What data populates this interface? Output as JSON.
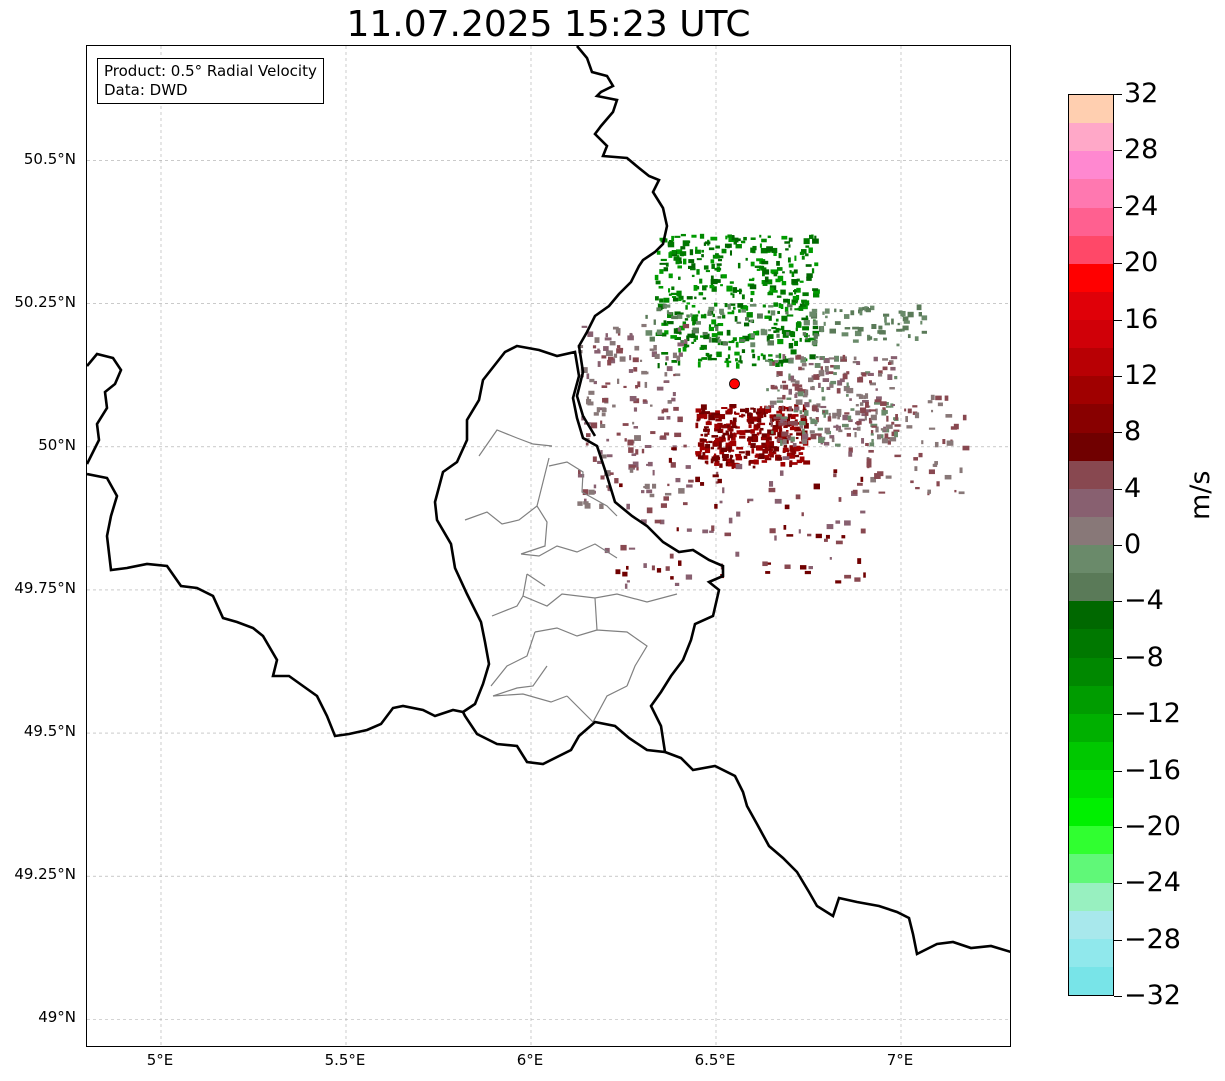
{
  "title": "11.07.2025 15:23 UTC",
  "info": {
    "product": "Product: 0.5° Radial Velocity",
    "data": "Data: DWD"
  },
  "map": {
    "lon_range": [
      4.8,
      7.3
    ],
    "lat_range": [
      48.95,
      50.7
    ],
    "gridlines": true,
    "lat_ticks": [
      {
        "value": 50.5,
        "label": "50.5°N"
      },
      {
        "value": 50.25,
        "label": "50.25°N"
      },
      {
        "value": 50.0,
        "label": "50°N"
      },
      {
        "value": 49.75,
        "label": "49.75°N"
      },
      {
        "value": 49.5,
        "label": "49.5°N"
      },
      {
        "value": 49.25,
        "label": "49.25°N"
      },
      {
        "value": 49.0,
        "label": "49°N"
      }
    ],
    "lon_ticks": [
      {
        "value": 5.0,
        "label": "5°E"
      },
      {
        "value": 5.5,
        "label": "5.5°E"
      },
      {
        "value": 6.0,
        "label": "6°E"
      },
      {
        "value": 6.5,
        "label": "6.5°E"
      },
      {
        "value": 7.0,
        "label": "7°E"
      }
    ],
    "radar_site": {
      "lon": 6.55,
      "lat": 50.11,
      "color": "#ff0000"
    }
  },
  "colorbar": {
    "unit": "m/s",
    "range": [
      -32,
      32
    ],
    "tick_labels": [
      "32",
      "28",
      "24",
      "20",
      "16",
      "12",
      "8",
      "4",
      "0",
      "−4",
      "−8",
      "−12",
      "−16",
      "−20",
      "−24",
      "−28",
      "−32"
    ],
    "colors_top_to_bottom": [
      "#ffcfb0",
      "#ffa8c8",
      "#ff88d0",
      "#ff78b0",
      "#ff6090",
      "#ff4868",
      "#ff0000",
      "#e00008",
      "#d00008",
      "#b80004",
      "#a00000",
      "#880000",
      "#700000",
      "#884850",
      "#886070",
      "#887878",
      "#6a8a6a",
      "#5a7a58",
      "#006800",
      "#007800",
      "#008800",
      "#009c00",
      "#00b000",
      "#00c800",
      "#00dc00",
      "#00f000",
      "#30ff30",
      "#60f878",
      "#98f0c0",
      "#a8e8ec",
      "#90e8ec",
      "#78e4e8"
    ]
  }
}
